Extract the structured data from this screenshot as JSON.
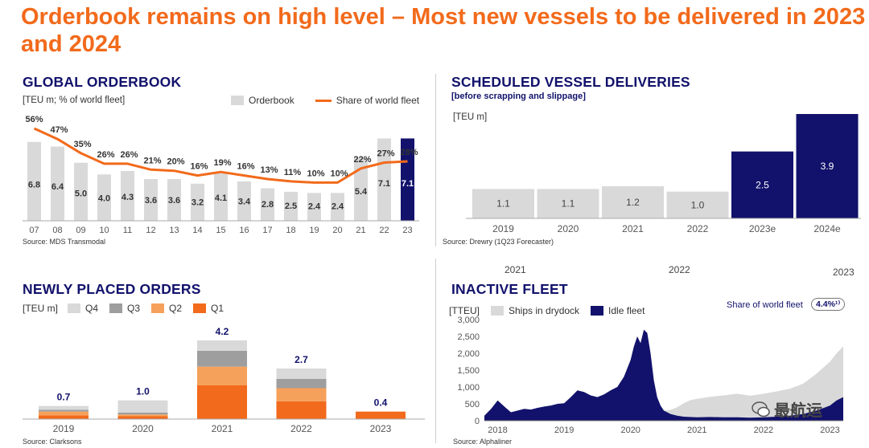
{
  "page_title": "Orderbook remains on high level – Most new vessels to be delivered in 2023 and 2024",
  "colors": {
    "orange": "#f26a1b",
    "navy": "#12126c",
    "grey": "#d9d9d9",
    "darkgrey": "#9e9e9e",
    "lightorange": "#f6a15b"
  },
  "watermark": {
    "text": "最航运"
  },
  "chart_data": [
    {
      "id": "global_orderbook",
      "type": "bar",
      "title": "GLOBAL ORDERBOOK",
      "unit_label": "[TEU m; % of world fleet]",
      "legend": [
        "Orderbook",
        "Share of world fleet"
      ],
      "categories": [
        "07",
        "08",
        "09",
        "10",
        "11",
        "12",
        "13",
        "14",
        "15",
        "16",
        "17",
        "18",
        "19",
        "20",
        "21",
        "22",
        "23"
      ],
      "values": [
        6.8,
        6.4,
        5.0,
        4.0,
        4.3,
        3.6,
        3.6,
        3.2,
        4.1,
        3.4,
        2.8,
        2.5,
        2.4,
        2.4,
        5.4,
        7.1,
        7.1
      ],
      "value_labels": [
        "6.8",
        "6.4",
        "5.0",
        "4.0",
        "4.3",
        "3.6",
        "3.6",
        "3.2",
        "4.1",
        "3.4",
        "2.8",
        "2.5",
        "2.4",
        "2.4",
        "5.4",
        "7.1",
        "7.1"
      ],
      "share_pct": [
        56,
        47,
        35,
        26,
        26,
        21,
        20,
        16,
        19,
        16,
        13,
        11,
        10,
        10,
        22,
        27,
        28
      ],
      "share_labels": [
        "56%",
        "47%",
        "35%",
        "26%",
        "26%",
        "21%",
        "20%",
        "16%",
        "19%",
        "16%",
        "13%",
        "11%",
        "10%",
        "10%",
        "22%",
        "27%",
        "28%"
      ],
      "highlight_last": true,
      "source": "Source: MDS Transmodal"
    },
    {
      "id": "scheduled_deliveries",
      "type": "bar",
      "title": "SCHEDULED VESSEL DELIVERIES",
      "subtitle": "[before scrapping and slippage]",
      "unit_label": "[TEU m]",
      "categories": [
        "2019",
        "2020",
        "2021",
        "2022",
        "2023e",
        "2024e"
      ],
      "values": [
        1.1,
        1.1,
        1.2,
        1.0,
        2.5,
        3.9
      ],
      "value_labels": [
        "1.1",
        "1.1",
        "1.2",
        "1.0",
        "2.5",
        "3.9"
      ],
      "highlight": [
        false,
        false,
        false,
        false,
        true,
        true
      ],
      "source": "Source: Drewry (1Q23 Forecaster)"
    },
    {
      "id": "newly_placed_orders",
      "type": "bar",
      "stacked": true,
      "title": "NEWLY PLACED ORDERS",
      "unit_label": "[TEU m]",
      "categories": [
        "2019",
        "2020",
        "2021",
        "2022",
        "2023"
      ],
      "series": [
        {
          "name": "Q1",
          "values": [
            0.2,
            0.15,
            1.8,
            0.95,
            0.4
          ]
        },
        {
          "name": "Q2",
          "values": [
            0.2,
            0.1,
            1.0,
            0.7,
            0.0
          ]
        },
        {
          "name": "Q3",
          "values": [
            0.1,
            0.1,
            0.85,
            0.5,
            0.0
          ]
        },
        {
          "name": "Q4",
          "values": [
            0.2,
            0.65,
            0.55,
            0.55,
            0.0
          ]
        }
      ],
      "totals": [
        "0.7",
        "1.0",
        "4.2",
        "2.7",
        "0.4"
      ],
      "legend_order": [
        "Q4",
        "Q3",
        "Q2",
        "Q1"
      ],
      "source": "Source: Clarksons",
      "year_overlay": [
        "2021",
        "2022",
        "2023"
      ]
    },
    {
      "id": "inactive_fleet",
      "type": "area",
      "title": "INACTIVE FLEET",
      "unit_label": "[TTEU]",
      "legend": [
        "Ships in drydock",
        "Idle fleet"
      ],
      "share_label": "Share of world fleet",
      "share_value": "4.4%¹⁾",
      "ylim": [
        0,
        3000
      ],
      "yticks": [
        "3,000",
        "2,500",
        "2,000",
        "1,500",
        "1,000",
        "500",
        "0"
      ],
      "xticks": [
        "2018",
        "2019",
        "2020",
        "2021",
        "2022",
        "2023"
      ],
      "x": [
        2017.8,
        2017.9,
        2018.0,
        2018.1,
        2018.2,
        2018.3,
        2018.4,
        2018.5,
        2018.6,
        2018.7,
        2018.8,
        2018.9,
        2019.0,
        2019.1,
        2019.2,
        2019.3,
        2019.4,
        2019.5,
        2019.6,
        2019.7,
        2019.8,
        2019.9,
        2020.0,
        2020.05,
        2020.1,
        2020.15,
        2020.2,
        2020.25,
        2020.3,
        2020.35,
        2020.4,
        2020.45,
        2020.5,
        2020.6,
        2020.7,
        2020.8,
        2020.9,
        2021.0,
        2021.2,
        2021.4,
        2021.6,
        2021.8,
        2022.0,
        2022.2,
        2022.4,
        2022.6,
        2022.8,
        2023.0,
        2023.1,
        2023.2
      ],
      "idle": [
        150,
        350,
        600,
        420,
        250,
        300,
        350,
        330,
        380,
        420,
        450,
        500,
        520,
        700,
        900,
        850,
        750,
        700,
        780,
        900,
        1000,
        1300,
        1800,
        2200,
        2500,
        2300,
        2700,
        2600,
        2000,
        1200,
        700,
        450,
        300,
        200,
        150,
        120,
        110,
        100,
        110,
        100,
        100,
        90,
        100,
        120,
        150,
        200,
        300,
        450,
        600,
        700
      ],
      "drydock": [
        0,
        0,
        0,
        0,
        0,
        0,
        0,
        0,
        0,
        0,
        0,
        0,
        0,
        0,
        0,
        0,
        0,
        0,
        0,
        0,
        0,
        0,
        0,
        0,
        0,
        0,
        0,
        0,
        0,
        0,
        0,
        0,
        0,
        120,
        250,
        400,
        500,
        550,
        600,
        650,
        700,
        650,
        700,
        750,
        800,
        900,
        1100,
        1300,
        1400,
        1500
      ],
      "source": "Source: Alphaliner"
    }
  ]
}
